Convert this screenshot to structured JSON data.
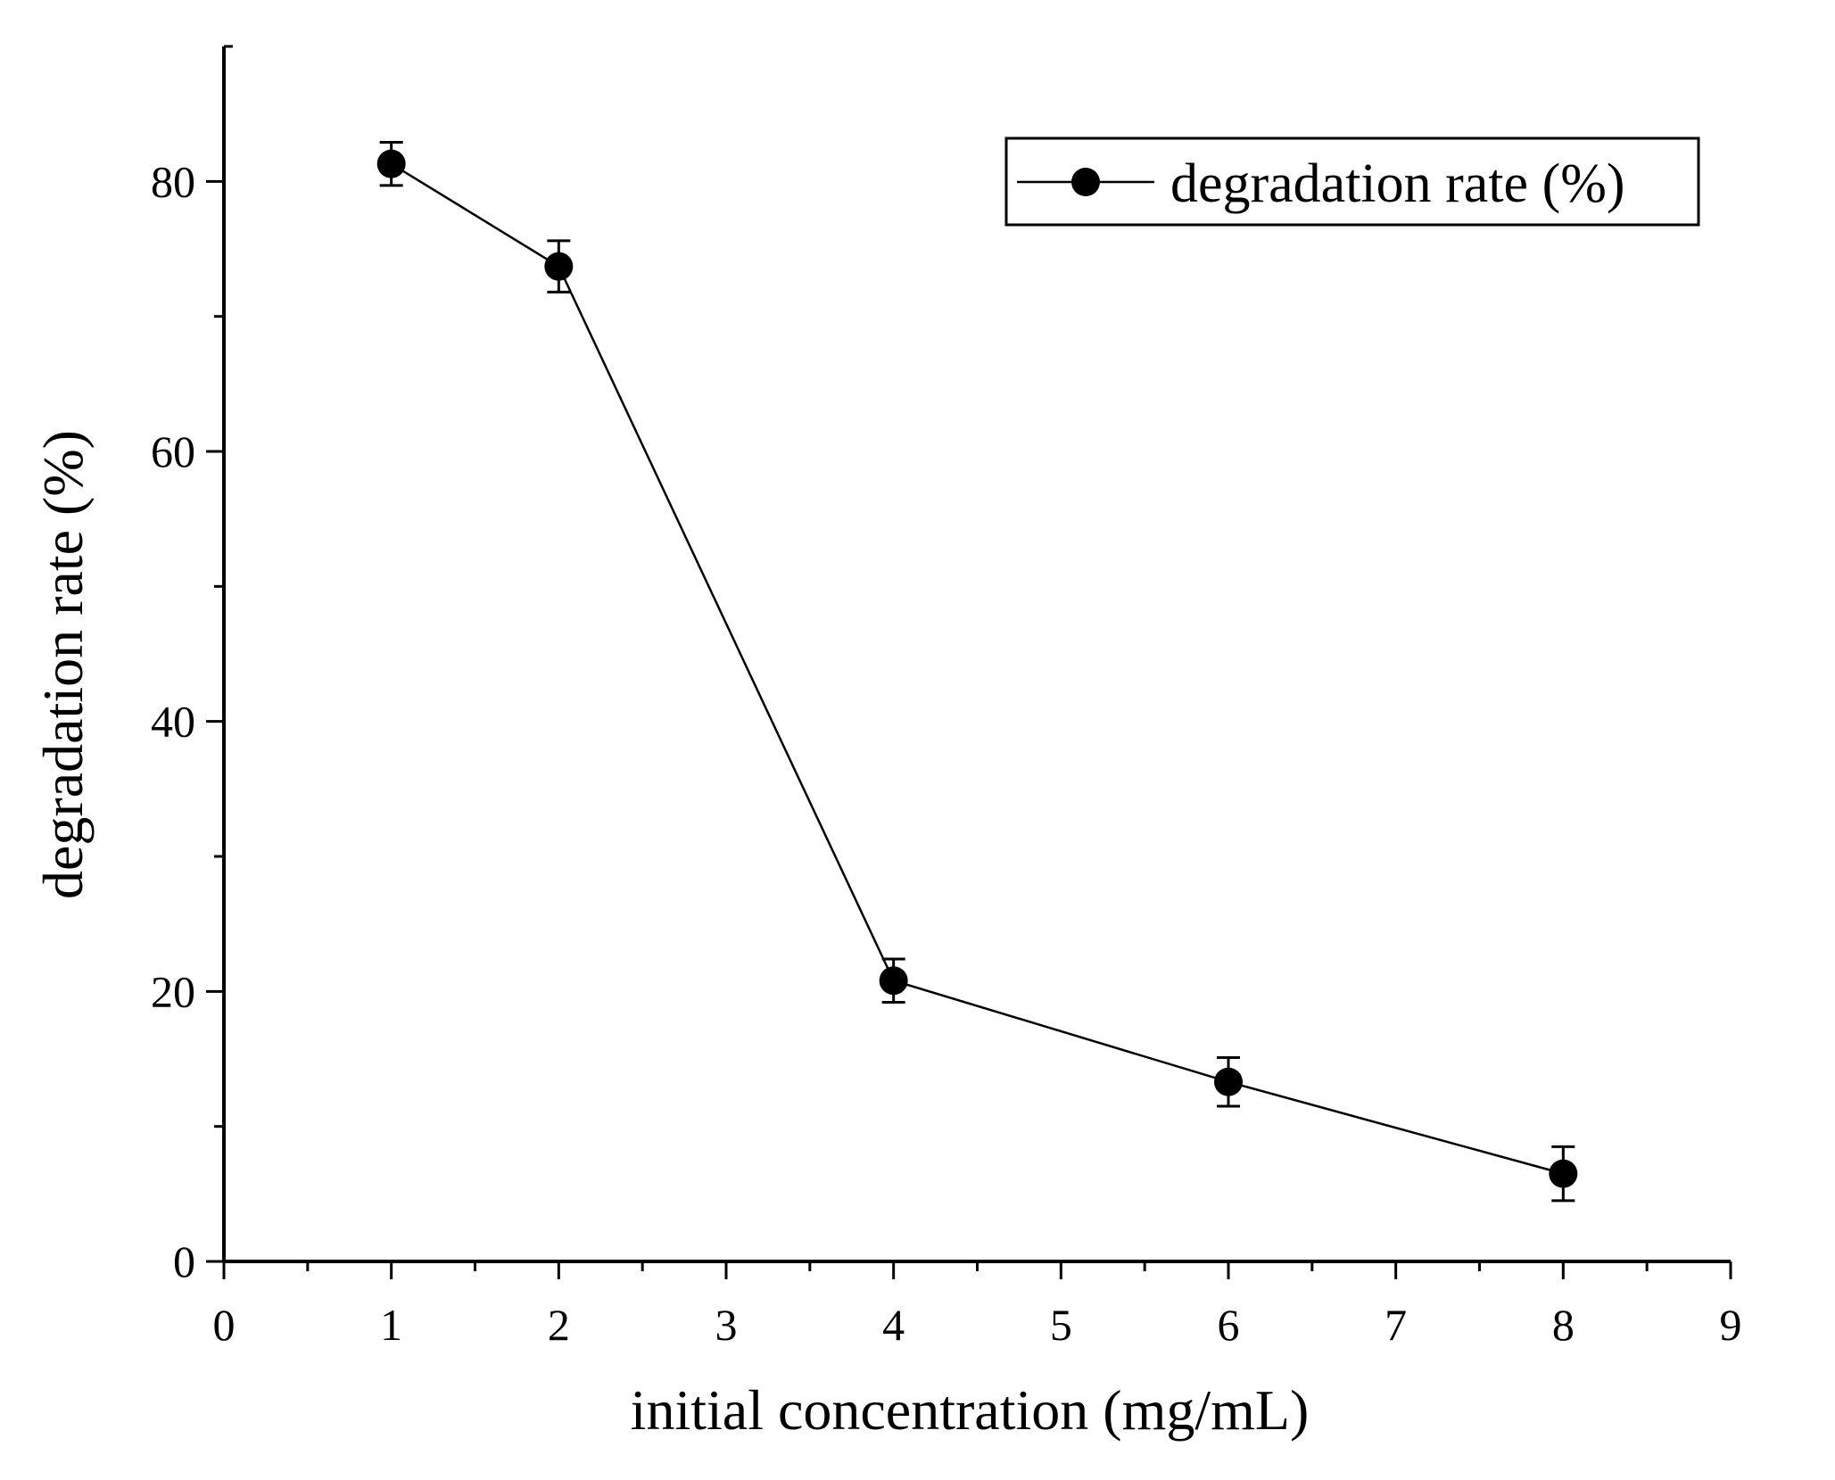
{
  "chart_data": {
    "type": "line",
    "title": "",
    "xlabel": "initial concentration (mg/mL)",
    "ylabel": "degradation rate (%)",
    "xlim": [
      0,
      9
    ],
    "ylim": [
      0,
      90
    ],
    "x_ticks_major": [
      0,
      1,
      2,
      3,
      4,
      5,
      6,
      7,
      8,
      9
    ],
    "x_tick_labels": [
      "0",
      "1",
      "2",
      "3",
      "4",
      "5",
      "6",
      "7",
      "8",
      "9"
    ],
    "y_ticks_major": [
      0,
      20,
      40,
      60,
      80
    ],
    "y_tick_labels": [
      "0",
      "20",
      "40",
      "60",
      "80"
    ],
    "grid": false,
    "legend_position": "top-right",
    "series": [
      {
        "name": "degradation rate (%)",
        "color": "#000000",
        "x": [
          1,
          2,
          4,
          6,
          8
        ],
        "y": [
          81.3,
          73.7,
          20.8,
          13.3,
          6.5
        ],
        "error": [
          1.6,
          1.9,
          1.6,
          1.8,
          2.0
        ]
      }
    ]
  }
}
